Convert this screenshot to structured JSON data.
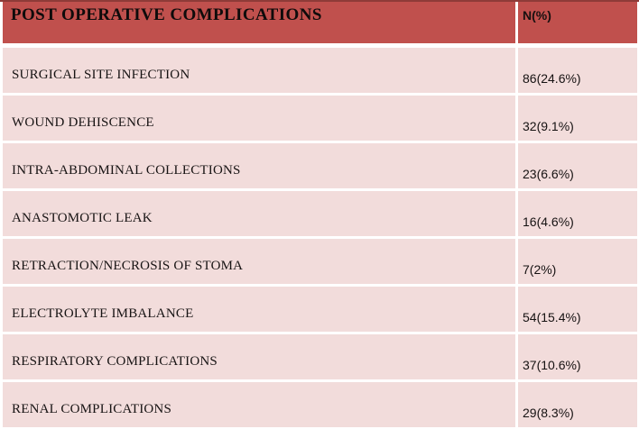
{
  "table": {
    "header": {
      "complication_col": "POST OPERATIVE COMPLICATIONS",
      "value_col": "N(%)"
    },
    "rows": [
      {
        "label": "SURGICAL SITE INFECTION",
        "value": "86(24.6%)"
      },
      {
        "label": "WOUND DEHISCENCE",
        "value": "32(9.1%)"
      },
      {
        "label": "INTRA-ABDOMINAL COLLECTIONS",
        "value": "23(6.6%)"
      },
      {
        "label": "ANASTOMOTIC LEAK",
        "value": "16(4.6%)"
      },
      {
        "label": "RETRACTION/NECROSIS OF STOMA",
        "value": "7(2%)"
      },
      {
        "label": "ELECTROLYTE IMBALANCE",
        "value": "54(15.4%)"
      },
      {
        "label": "RESPIRATORY COMPLICATIONS",
        "value": "37(10.6%)"
      },
      {
        "label": "RENAL COMPLICATIONS",
        "value": "29(8.3%)"
      }
    ],
    "colors": {
      "header_bg": "#c0504d",
      "row_bg": "#f2dcdb",
      "grid_gap": "#ffffff",
      "top_edge": "#8e3b38",
      "text": "#161212"
    }
  },
  "chart_data": {
    "type": "table",
    "title": "POST OPERATIVE COMPLICATIONS",
    "columns": [
      "POST OPERATIVE COMPLICATIONS",
      "N(%)"
    ],
    "rows": [
      [
        "SURGICAL SITE INFECTION",
        "86(24.6%)"
      ],
      [
        "WOUND DEHISCENCE",
        "32(9.1%)"
      ],
      [
        "INTRA-ABDOMINAL COLLECTIONS",
        "23(6.6%)"
      ],
      [
        "ANASTOMOTIC LEAK",
        "16(4.6%)"
      ],
      [
        "RETRACTION/NECROSIS OF STOMA",
        "7(2%)"
      ],
      [
        "ELECTROLYTE IMBALANCE",
        "54(15.4%)"
      ],
      [
        "RESPIRATORY COMPLICATIONS",
        "37(10.6%)"
      ],
      [
        "RENAL COMPLICATIONS",
        "29(8.3%)"
      ]
    ],
    "n_values": [
      86,
      32,
      23,
      16,
      7,
      54,
      37,
      29
    ],
    "pct_values": [
      24.6,
      9.1,
      6.6,
      4.6,
      2,
      15.4,
      10.6,
      8.3
    ],
    "layout": {
      "header_bg": "#c0504d",
      "row_bg": "#f2dcdb",
      "grid": "white-gaps"
    }
  }
}
